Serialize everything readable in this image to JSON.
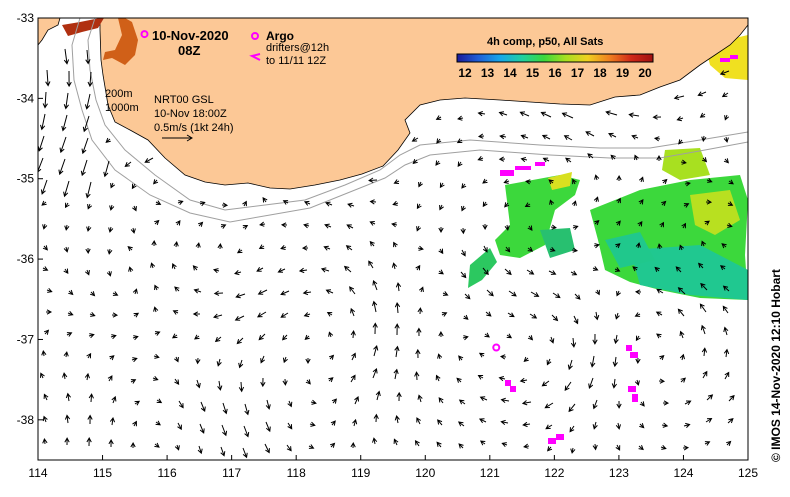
{
  "header": {
    "date": "10-Nov-2020",
    "time": "08Z"
  },
  "legend": {
    "argo_label": "Argo",
    "drifters_line1": "drifters@12h",
    "drifters_line2": "to 11/11 12Z",
    "composite_title": "4h comp, p50, All Sats",
    "colorbar_ticks": [
      "12",
      "13",
      "14",
      "15",
      "16",
      "17",
      "18",
      "19",
      "20"
    ],
    "colorbar_colors": [
      "#1a1a9a",
      "#1f60d8",
      "#18a8e8",
      "#22d0a0",
      "#3cd83c",
      "#a8e020",
      "#f0d020",
      "#f08020",
      "#d02818",
      "#a01010"
    ]
  },
  "contours": {
    "label_200": "200m",
    "label_1000": "1000m"
  },
  "model_info": {
    "line1": "NRT00 GSL",
    "line2": "10-Nov 18:00Z",
    "line3": "0.5m/s (1kt 24h)"
  },
  "credit": "© IMOS 14-Nov-2020 12:10 Hobart",
  "axes": {
    "x_ticks": [
      "114",
      "115",
      "116",
      "117",
      "118",
      "119",
      "120",
      "121",
      "122",
      "123",
      "124",
      "125"
    ],
    "y_ticks": [
      "-33",
      "-34",
      "-35",
      "-36",
      "-37",
      "-38"
    ]
  },
  "chart_data": {
    "type": "map",
    "x_range": [
      114,
      125
    ],
    "y_range": [
      -38.5,
      -33
    ],
    "colors": {
      "land": "#fcc896",
      "arrow": "#000000",
      "argo": "#ff00ff",
      "drifter": "#ff00ff",
      "contour": "#a0a0a0"
    },
    "argo_floats": [
      {
        "lon": 115.65,
        "lat": -33.2
      },
      {
        "lon": 121.1,
        "lat": -37.1
      }
    ]
  }
}
